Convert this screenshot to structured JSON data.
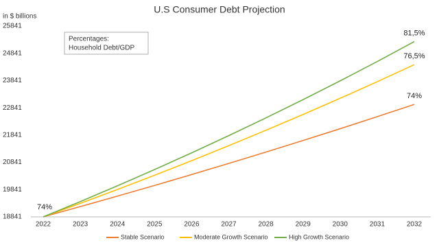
{
  "chart_data": {
    "type": "line",
    "title": "U.S Consumer Debt Projection",
    "y_label": "in $ billions",
    "text_box": [
      "Percentages:",
      "Household Debt/GDP"
    ],
    "categories": [
      "2022",
      "2023",
      "2024",
      "2025",
      "2026",
      "2027",
      "2028",
      "2029",
      "2030",
      "2031",
      "2032"
    ],
    "series": [
      {
        "name": "Stable Scenario",
        "color": "#ed7d31",
        "values": [
          18841,
          19218,
          19602,
          19994,
          20394,
          20802,
          21218,
          21642,
          22075,
          22517,
          22967
        ]
      },
      {
        "name": "Moderate Growth Scenario",
        "color": "#ffc000",
        "values": [
          18841,
          19337,
          19845,
          20367,
          20903,
          21453,
          22017,
          22596,
          23190,
          23800,
          24426
        ]
      },
      {
        "name": "High Growth Scenario",
        "color": "#70ad47",
        "values": [
          18841,
          19402,
          19981,
          20576,
          21189,
          21821,
          22471,
          23141,
          23830,
          24540,
          25272
        ]
      }
    ],
    "annotations": [
      "74%",
      "81,5%",
      "76,5%",
      "74%"
    ],
    "ylim": [
      18841,
      25841
    ],
    "yticks": [
      18841,
      19841,
      20841,
      21841,
      22841,
      23841,
      24841,
      25841
    ],
    "grid": false,
    "legend": "bottom"
  }
}
